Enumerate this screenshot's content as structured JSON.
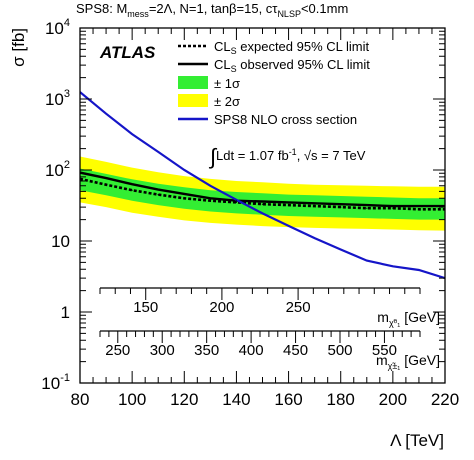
{
  "chart_data": {
    "type": "line",
    "header": {
      "base": "SPS8: M",
      "sub1": "mess",
      "mid": "=2Λ, N=1, tanβ=15, cτ",
      "sub2": "NLSP",
      "tail": "<0.1mm"
    },
    "xlabel": "Λ [TeV]",
    "ylabel": "σ [fb]",
    "xlim": [
      80,
      220
    ],
    "ylim": [
      0.1,
      10000
    ],
    "yscale": "log",
    "x_ticks": [
      "80",
      "100",
      "120",
      "140",
      "160",
      "180",
      "200",
      "220"
    ],
    "y_ticks": [
      {
        "value": 0.1,
        "base": "10",
        "exp": "-1"
      },
      {
        "value": 1,
        "base": "1",
        "exp": ""
      },
      {
        "value": 10,
        "base": "10",
        "exp": ""
      },
      {
        "value": 100,
        "base": "10",
        "exp": "2"
      },
      {
        "value": 1000,
        "base": "10",
        "exp": "3"
      },
      {
        "value": 10000,
        "base": "10",
        "exp": "4"
      }
    ],
    "experiment_label": "ATLAS",
    "luminosity_label": {
      "integral": "Ldt = 1.07 fb",
      "exp": "-1",
      "rest": ", √s = 7 TeV"
    },
    "legend": {
      "placement": "top-right",
      "expected": {
        "pre": "CL",
        "sub": "S",
        "post": " expected 95% CL limit"
      },
      "observed": {
        "pre": "CL",
        "sub": "S",
        "post": " observed 95% CL limit"
      },
      "band1": "± 1σ",
      "band2": "± 2σ",
      "nlo": "SPS8 NLO cross section"
    },
    "colors": {
      "observed": "#000000",
      "expected": "#000000",
      "band1": "#33ee33",
      "band2": "#ffff00",
      "nlo": "#1515c8"
    },
    "x": [
      80,
      90,
      100,
      110,
      120,
      130,
      140,
      150,
      160,
      170,
      180,
      190,
      200,
      210,
      220
    ],
    "series": [
      {
        "name": "CLS expected 95% CL limit",
        "values": [
          75,
          62,
          52,
          45,
          40,
          37,
          35,
          33,
          32,
          31,
          30,
          29,
          29,
          28,
          28
        ]
      },
      {
        "name": "CLS observed 95% CL limit",
        "values": [
          92,
          77,
          63,
          53,
          46,
          40,
          37,
          36,
          35,
          34,
          33,
          32,
          31,
          31,
          31
        ]
      },
      {
        "name": "SPS8 NLO cross section",
        "values": [
          1250,
          620,
          320,
          180,
          100,
          60,
          38,
          24.5,
          16.3,
          11,
          7.6,
          5.3,
          4.4,
          3.9,
          3.0
        ]
      }
    ],
    "bands": [
      {
        "name": "± 1σ",
        "lower": [
          52,
          44,
          37,
          32,
          28.5,
          26,
          24.5,
          23.5,
          22.5,
          22,
          21.5,
          21,
          20.5,
          20,
          20
        ],
        "upper": [
          105,
          88,
          74,
          64,
          57,
          52,
          49,
          47,
          45,
          44,
          43,
          42,
          41,
          40,
          40
        ]
      },
      {
        "name": "± 2σ",
        "lower": [
          35,
          30,
          25,
          22,
          19.5,
          18,
          17,
          16.2,
          15.7,
          15.3,
          15,
          14.8,
          14.5,
          14.2,
          14
        ],
        "upper": [
          155,
          130,
          108,
          93,
          82,
          75,
          70,
          67,
          64,
          62,
          61,
          60,
          59,
          58,
          58
        ]
      }
    ],
    "secondary_axes": [
      {
        "label_base": "m",
        "label_sub": "χ̃⁰₁",
        "label_unit": " [GeV]",
        "range": [
          120,
          330
        ],
        "ticks": [
          150,
          200,
          250
        ],
        "tick_labels": [
          "150",
          "200",
          "250"
        ]
      },
      {
        "label_base": "m",
        "label_sub": "χ̃±₁",
        "label_unit": " [GeV]",
        "range": [
          230,
          590
        ],
        "ticks": [
          250,
          300,
          350,
          400,
          450,
          500,
          550
        ],
        "tick_labels": [
          "250",
          "300",
          "350",
          "400",
          "450",
          "500",
          "550"
        ]
      }
    ]
  }
}
